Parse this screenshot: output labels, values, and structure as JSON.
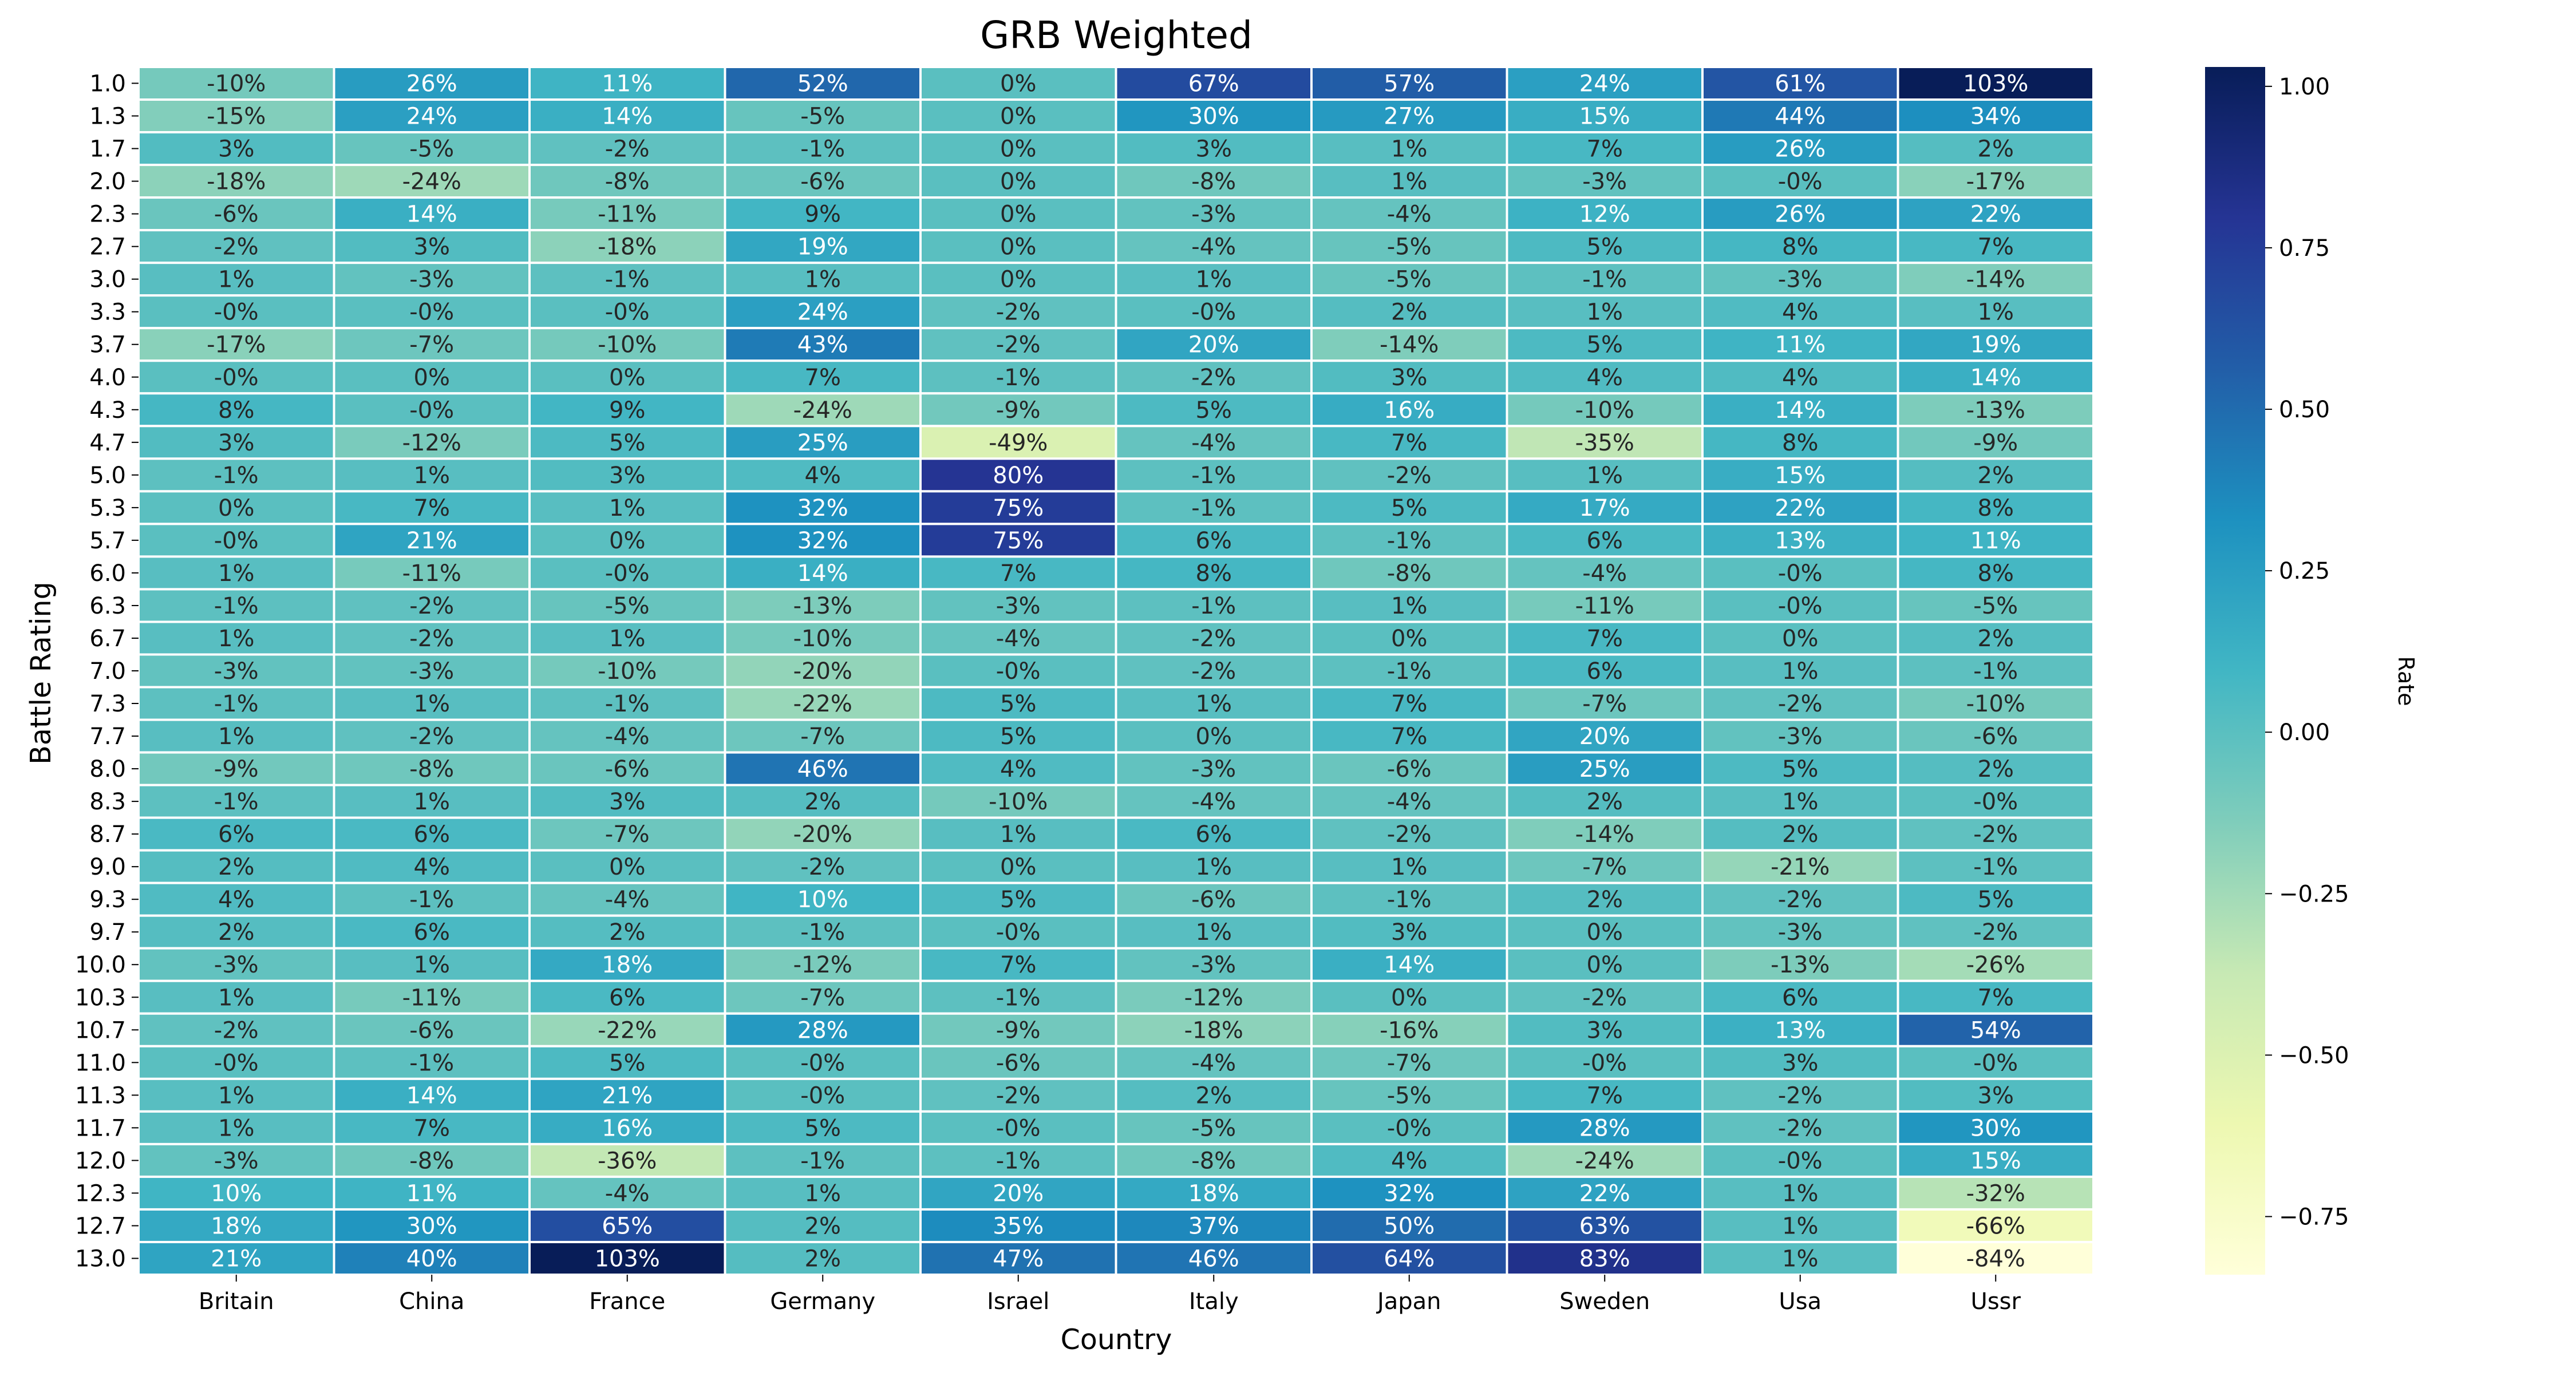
{
  "chart_data": {
    "type": "heatmap",
    "title": "GRB Weighted",
    "xlabel": "Country",
    "ylabel": "Battle Rating",
    "colorbar_label": "Rate",
    "colorbar_ticks": [
      "1.00",
      "0.75",
      "0.50",
      "0.25",
      "0.00",
      "−0.25",
      "−0.50",
      "−0.75"
    ],
    "colorbar_tick_values": [
      1.0,
      0.75,
      0.5,
      0.25,
      0.0,
      -0.25,
      -0.5,
      -0.75
    ],
    "colorbar_range": [
      -0.84,
      1.03
    ],
    "colormap": [
      "#ffffd9",
      "#edf8b1",
      "#c7e9b4",
      "#7fcdbb",
      "#41b6c4",
      "#1d91c0",
      "#225ea8",
      "#253494",
      "#081d58"
    ],
    "columns": [
      "Britain",
      "China",
      "France",
      "Germany",
      "Israel",
      "Italy",
      "Japan",
      "Sweden",
      "Usa",
      "Ussr"
    ],
    "rows": [
      "1.0",
      "1.3",
      "1.7",
      "2.0",
      "2.3",
      "2.7",
      "3.0",
      "3.3",
      "3.7",
      "4.0",
      "4.3",
      "4.7",
      "5.0",
      "5.3",
      "5.7",
      "6.0",
      "6.3",
      "6.7",
      "7.0",
      "7.3",
      "7.7",
      "8.0",
      "8.3",
      "8.7",
      "9.0",
      "9.3",
      "9.7",
      "10.0",
      "10.3",
      "10.7",
      "11.0",
      "11.3",
      "11.7",
      "12.0",
      "12.3",
      "12.7",
      "13.0"
    ],
    "values": [
      [
        -0.1,
        0.26,
        0.11,
        0.52,
        0.0,
        0.67,
        0.57,
        0.24,
        0.61,
        1.03
      ],
      [
        -0.15,
        0.24,
        0.14,
        -0.05,
        0.0,
        0.3,
        0.27,
        0.15,
        0.44,
        0.34
      ],
      [
        0.03,
        -0.05,
        -0.02,
        -0.01,
        0.0,
        0.03,
        0.01,
        0.07,
        0.26,
        0.02
      ],
      [
        -0.18,
        -0.24,
        -0.08,
        -0.06,
        0.0,
        -0.08,
        0.01,
        -0.03,
        -0.001,
        -0.17
      ],
      [
        -0.06,
        0.14,
        -0.11,
        0.09,
        0.0,
        -0.03,
        -0.04,
        0.12,
        0.26,
        0.22
      ],
      [
        -0.02,
        0.03,
        -0.18,
        0.19,
        0.0,
        -0.04,
        -0.05,
        0.05,
        0.08,
        0.07
      ],
      [
        0.01,
        -0.03,
        -0.01,
        0.01,
        0.0,
        0.01,
        -0.05,
        -0.01,
        -0.03,
        -0.14
      ],
      [
        -0.001,
        -0.001,
        -0.001,
        0.24,
        -0.02,
        -0.001,
        0.02,
        0.01,
        0.04,
        0.01
      ],
      [
        -0.17,
        -0.07,
        -0.1,
        0.43,
        -0.02,
        0.2,
        -0.14,
        0.05,
        0.11,
        0.19
      ],
      [
        -0.001,
        0.0,
        0.0,
        0.07,
        -0.01,
        -0.02,
        0.03,
        0.04,
        0.04,
        0.14
      ],
      [
        0.08,
        -0.001,
        0.09,
        -0.24,
        -0.09,
        0.05,
        0.16,
        -0.1,
        0.14,
        -0.13
      ],
      [
        0.03,
        -0.12,
        0.05,
        0.25,
        -0.49,
        -0.04,
        0.07,
        -0.35,
        0.08,
        -0.09
      ],
      [
        -0.01,
        0.01,
        0.03,
        0.04,
        0.8,
        -0.01,
        -0.02,
        0.01,
        0.15,
        0.02
      ],
      [
        0.0,
        0.07,
        0.01,
        0.32,
        0.75,
        -0.01,
        0.05,
        0.17,
        0.22,
        0.08
      ],
      [
        -0.001,
        0.21,
        0.0,
        0.32,
        0.75,
        0.06,
        -0.01,
        0.06,
        0.13,
        0.11
      ],
      [
        0.01,
        -0.11,
        -0.001,
        0.14,
        0.07,
        0.08,
        -0.08,
        -0.04,
        -0.001,
        0.08
      ],
      [
        -0.01,
        -0.02,
        -0.05,
        -0.13,
        -0.03,
        -0.01,
        0.01,
        -0.11,
        -0.001,
        -0.05
      ],
      [
        0.01,
        -0.02,
        0.01,
        -0.1,
        -0.04,
        -0.02,
        0.0,
        0.07,
        0.0,
        0.02
      ],
      [
        -0.03,
        -0.03,
        -0.1,
        -0.2,
        -0.001,
        -0.02,
        -0.01,
        0.06,
        0.01,
        -0.01
      ],
      [
        -0.01,
        0.01,
        -0.01,
        -0.22,
        0.05,
        0.01,
        0.07,
        -0.07,
        -0.02,
        -0.1
      ],
      [
        0.01,
        -0.02,
        -0.04,
        -0.07,
        0.05,
        0.0,
        0.07,
        0.2,
        -0.03,
        -0.06
      ],
      [
        -0.09,
        -0.08,
        -0.06,
        0.46,
        0.04,
        -0.03,
        -0.06,
        0.25,
        0.05,
        0.02
      ],
      [
        -0.01,
        0.01,
        0.03,
        0.02,
        -0.1,
        -0.04,
        -0.04,
        0.02,
        0.01,
        -0.001
      ],
      [
        0.06,
        0.06,
        -0.07,
        -0.2,
        0.01,
        0.06,
        -0.02,
        -0.14,
        0.02,
        -0.02
      ],
      [
        0.02,
        0.04,
        0.0,
        -0.02,
        0.0,
        0.01,
        0.01,
        -0.07,
        -0.21,
        -0.01
      ],
      [
        0.04,
        -0.01,
        -0.04,
        0.1,
        0.05,
        -0.06,
        -0.01,
        0.02,
        -0.02,
        0.05
      ],
      [
        0.02,
        0.06,
        0.02,
        -0.01,
        -0.001,
        0.01,
        0.03,
        0.0,
        -0.03,
        -0.02
      ],
      [
        -0.03,
        0.01,
        0.18,
        -0.12,
        0.07,
        -0.03,
        0.14,
        0.0,
        -0.13,
        -0.26
      ],
      [
        0.01,
        -0.11,
        0.06,
        -0.07,
        -0.01,
        -0.12,
        0.0,
        -0.02,
        0.06,
        0.07
      ],
      [
        -0.02,
        -0.06,
        -0.22,
        0.28,
        -0.09,
        -0.18,
        -0.16,
        0.03,
        0.13,
        0.54
      ],
      [
        -0.001,
        -0.01,
        0.05,
        -0.001,
        -0.06,
        -0.04,
        -0.07,
        -0.001,
        0.03,
        -0.001
      ],
      [
        0.01,
        0.14,
        0.21,
        -0.001,
        -0.02,
        0.02,
        -0.05,
        0.07,
        -0.02,
        0.03
      ],
      [
        0.01,
        0.07,
        0.16,
        0.05,
        -0.001,
        -0.05,
        -0.001,
        0.28,
        -0.02,
        0.3
      ],
      [
        -0.03,
        -0.08,
        -0.36,
        -0.01,
        -0.01,
        -0.08,
        0.04,
        -0.24,
        -0.001,
        0.15
      ],
      [
        0.1,
        0.11,
        -0.04,
        0.01,
        0.2,
        0.18,
        0.32,
        0.22,
        0.01,
        -0.32
      ],
      [
        0.18,
        0.3,
        0.65,
        0.02,
        0.35,
        0.37,
        0.5,
        0.63,
        0.01,
        -0.66
      ],
      [
        0.21,
        0.4,
        1.03,
        0.02,
        0.47,
        0.46,
        0.64,
        0.83,
        0.01,
        -0.84
      ]
    ],
    "labels": [
      [
        "-10%",
        "26%",
        "11%",
        "52%",
        "0%",
        "67%",
        "57%",
        "24%",
        "61%",
        "103%"
      ],
      [
        "-15%",
        "24%",
        "14%",
        "-5%",
        "0%",
        "30%",
        "27%",
        "15%",
        "44%",
        "34%"
      ],
      [
        "3%",
        "-5%",
        "-2%",
        "-1%",
        "0%",
        "3%",
        "1%",
        "7%",
        "26%",
        "2%"
      ],
      [
        "-18%",
        "-24%",
        "-8%",
        "-6%",
        "0%",
        "-8%",
        "1%",
        "-3%",
        "-0%",
        "-17%"
      ],
      [
        "-6%",
        "14%",
        "-11%",
        "9%",
        "0%",
        "-3%",
        "-4%",
        "12%",
        "26%",
        "22%"
      ],
      [
        "-2%",
        "3%",
        "-18%",
        "19%",
        "0%",
        "-4%",
        "-5%",
        "5%",
        "8%",
        "7%"
      ],
      [
        "1%",
        "-3%",
        "-1%",
        "1%",
        "0%",
        "1%",
        "-5%",
        "-1%",
        "-3%",
        "-14%"
      ],
      [
        "-0%",
        "-0%",
        "-0%",
        "24%",
        "-2%",
        "-0%",
        "2%",
        "1%",
        "4%",
        "1%"
      ],
      [
        "-17%",
        "-7%",
        "-10%",
        "43%",
        "-2%",
        "20%",
        "-14%",
        "5%",
        "11%",
        "19%"
      ],
      [
        "-0%",
        "0%",
        "0%",
        "7%",
        "-1%",
        "-2%",
        "3%",
        "4%",
        "4%",
        "14%"
      ],
      [
        "8%",
        "-0%",
        "9%",
        "-24%",
        "-9%",
        "5%",
        "16%",
        "-10%",
        "14%",
        "-13%"
      ],
      [
        "3%",
        "-12%",
        "5%",
        "25%",
        "-49%",
        "-4%",
        "7%",
        "-35%",
        "8%",
        "-9%"
      ],
      [
        "-1%",
        "1%",
        "3%",
        "4%",
        "80%",
        "-1%",
        "-2%",
        "1%",
        "15%",
        "2%"
      ],
      [
        "0%",
        "7%",
        "1%",
        "32%",
        "75%",
        "-1%",
        "5%",
        "17%",
        "22%",
        "8%"
      ],
      [
        "-0%",
        "21%",
        "0%",
        "32%",
        "75%",
        "6%",
        "-1%",
        "6%",
        "13%",
        "11%"
      ],
      [
        "1%",
        "-11%",
        "-0%",
        "14%",
        "7%",
        "8%",
        "-8%",
        "-4%",
        "-0%",
        "8%"
      ],
      [
        "-1%",
        "-2%",
        "-5%",
        "-13%",
        "-3%",
        "-1%",
        "1%",
        "-11%",
        "-0%",
        "-5%"
      ],
      [
        "1%",
        "-2%",
        "1%",
        "-10%",
        "-4%",
        "-2%",
        "0%",
        "7%",
        "0%",
        "2%"
      ],
      [
        "-3%",
        "-3%",
        "-10%",
        "-20%",
        "-0%",
        "-2%",
        "-1%",
        "6%",
        "1%",
        "-1%"
      ],
      [
        "-1%",
        "1%",
        "-1%",
        "-22%",
        "5%",
        "1%",
        "7%",
        "-7%",
        "-2%",
        "-10%"
      ],
      [
        "1%",
        "-2%",
        "-4%",
        "-7%",
        "5%",
        "0%",
        "7%",
        "20%",
        "-3%",
        "-6%"
      ],
      [
        "-9%",
        "-8%",
        "-6%",
        "46%",
        "4%",
        "-3%",
        "-6%",
        "25%",
        "5%",
        "2%"
      ],
      [
        "-1%",
        "1%",
        "3%",
        "2%",
        "-10%",
        "-4%",
        "-4%",
        "2%",
        "1%",
        "-0%"
      ],
      [
        "6%",
        "6%",
        "-7%",
        "-20%",
        "1%",
        "6%",
        "-2%",
        "-14%",
        "2%",
        "-2%"
      ],
      [
        "2%",
        "4%",
        "0%",
        "-2%",
        "0%",
        "1%",
        "1%",
        "-7%",
        "-21%",
        "-1%"
      ],
      [
        "4%",
        "-1%",
        "-4%",
        "10%",
        "5%",
        "-6%",
        "-1%",
        "2%",
        "-2%",
        "5%"
      ],
      [
        "2%",
        "6%",
        "2%",
        "-1%",
        "-0%",
        "1%",
        "3%",
        "0%",
        "-3%",
        "-2%"
      ],
      [
        "-3%",
        "1%",
        "18%",
        "-12%",
        "7%",
        "-3%",
        "14%",
        "0%",
        "-13%",
        "-26%"
      ],
      [
        "1%",
        "-11%",
        "6%",
        "-7%",
        "-1%",
        "-12%",
        "0%",
        "-2%",
        "6%",
        "7%"
      ],
      [
        "-2%",
        "-6%",
        "-22%",
        "28%",
        "-9%",
        "-18%",
        "-16%",
        "3%",
        "13%",
        "54%"
      ],
      [
        "-0%",
        "-1%",
        "5%",
        "-0%",
        "-6%",
        "-4%",
        "-7%",
        "-0%",
        "3%",
        "-0%"
      ],
      [
        "1%",
        "14%",
        "21%",
        "-0%",
        "-2%",
        "2%",
        "-5%",
        "7%",
        "-2%",
        "3%"
      ],
      [
        "1%",
        "7%",
        "16%",
        "5%",
        "-0%",
        "-5%",
        "-0%",
        "28%",
        "-2%",
        "30%"
      ],
      [
        "-3%",
        "-8%",
        "-36%",
        "-1%",
        "-1%",
        "-8%",
        "4%",
        "-24%",
        "-0%",
        "15%"
      ],
      [
        "10%",
        "11%",
        "-4%",
        "1%",
        "20%",
        "18%",
        "32%",
        "22%",
        "1%",
        "-32%"
      ],
      [
        "18%",
        "30%",
        "65%",
        "2%",
        "35%",
        "37%",
        "50%",
        "63%",
        "1%",
        "-66%"
      ],
      [
        "21%",
        "40%",
        "103%",
        "2%",
        "47%",
        "46%",
        "64%",
        "83%",
        "1%",
        "-84%"
      ]
    ],
    "grid": false,
    "legend": "none",
    "colorbar": "right"
  }
}
